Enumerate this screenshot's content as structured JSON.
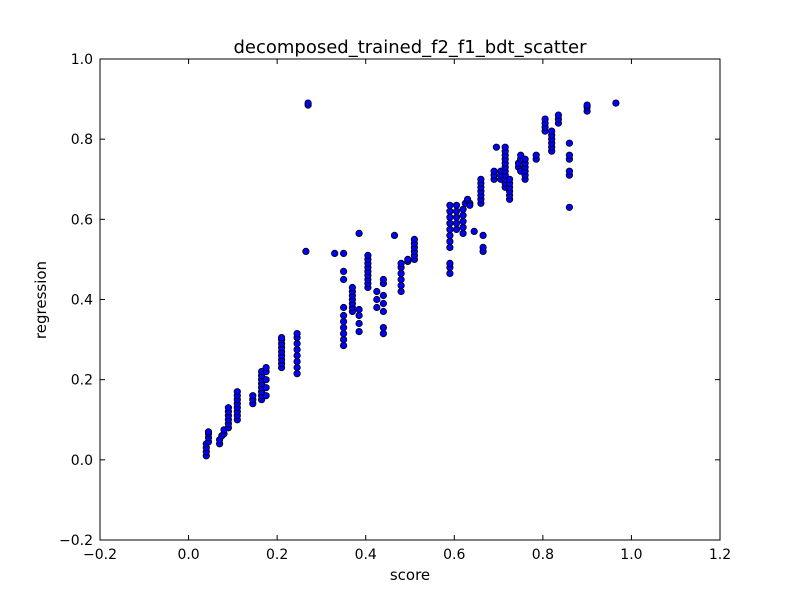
{
  "chart_data": {
    "type": "scatter",
    "title": "decomposed_trained_f2_f1_bdt_scatter",
    "xlabel": "score",
    "ylabel": "regression",
    "xlim": [
      -0.2,
      1.2
    ],
    "ylim": [
      -0.2,
      1.0
    ],
    "xticks": [
      -0.2,
      0.0,
      0.2,
      0.4,
      0.6,
      0.8,
      1.0,
      1.2
    ],
    "yticks": [
      -0.2,
      0.0,
      0.2,
      0.4,
      0.6,
      0.8,
      1.0
    ],
    "xtick_labels": [
      "−0.2",
      "0.0",
      "0.2",
      "0.4",
      "0.6",
      "0.8",
      "1.0",
      "1.2"
    ],
    "ytick_labels": [
      "−0.2",
      "0.0",
      "0.2",
      "0.4",
      "0.6",
      "0.8",
      "1.0"
    ],
    "grid": false,
    "marker_color": "#0000ff",
    "marker_edge_color": "#000000",
    "points": [
      [
        0.04,
        0.01
      ],
      [
        0.04,
        0.02
      ],
      [
        0.04,
        0.03
      ],
      [
        0.04,
        0.04
      ],
      [
        0.045,
        0.045
      ],
      [
        0.045,
        0.055
      ],
      [
        0.045,
        0.065
      ],
      [
        0.045,
        0.07
      ],
      [
        0.07,
        0.04
      ],
      [
        0.07,
        0.05
      ],
      [
        0.075,
        0.06
      ],
      [
        0.08,
        0.065
      ],
      [
        0.08,
        0.075
      ],
      [
        0.09,
        0.08
      ],
      [
        0.09,
        0.09
      ],
      [
        0.09,
        0.1
      ],
      [
        0.09,
        0.11
      ],
      [
        0.09,
        0.12
      ],
      [
        0.09,
        0.13
      ],
      [
        0.11,
        0.1
      ],
      [
        0.11,
        0.11
      ],
      [
        0.11,
        0.12
      ],
      [
        0.11,
        0.13
      ],
      [
        0.11,
        0.14
      ],
      [
        0.11,
        0.15
      ],
      [
        0.11,
        0.16
      ],
      [
        0.11,
        0.17
      ],
      [
        0.145,
        0.14
      ],
      [
        0.145,
        0.15
      ],
      [
        0.145,
        0.16
      ],
      [
        0.165,
        0.15
      ],
      [
        0.165,
        0.16
      ],
      [
        0.165,
        0.17
      ],
      [
        0.165,
        0.18
      ],
      [
        0.165,
        0.19
      ],
      [
        0.165,
        0.2
      ],
      [
        0.165,
        0.21
      ],
      [
        0.165,
        0.22
      ],
      [
        0.175,
        0.16
      ],
      [
        0.175,
        0.18
      ],
      [
        0.175,
        0.2
      ],
      [
        0.175,
        0.22
      ],
      [
        0.175,
        0.23
      ],
      [
        0.21,
        0.23
      ],
      [
        0.21,
        0.24
      ],
      [
        0.21,
        0.25
      ],
      [
        0.21,
        0.26
      ],
      [
        0.21,
        0.27
      ],
      [
        0.21,
        0.28
      ],
      [
        0.21,
        0.29
      ],
      [
        0.21,
        0.3
      ],
      [
        0.21,
        0.305
      ],
      [
        0.245,
        0.215
      ],
      [
        0.245,
        0.23
      ],
      [
        0.245,
        0.245
      ],
      [
        0.245,
        0.26
      ],
      [
        0.245,
        0.275
      ],
      [
        0.245,
        0.29
      ],
      [
        0.245,
        0.305
      ],
      [
        0.245,
        0.315
      ],
      [
        0.265,
        0.52
      ],
      [
        0.27,
        0.885
      ],
      [
        0.27,
        0.89
      ],
      [
        0.33,
        0.515
      ],
      [
        0.35,
        0.285
      ],
      [
        0.35,
        0.3
      ],
      [
        0.35,
        0.315
      ],
      [
        0.35,
        0.33
      ],
      [
        0.35,
        0.345
      ],
      [
        0.35,
        0.36
      ],
      [
        0.35,
        0.38
      ],
      [
        0.35,
        0.45
      ],
      [
        0.35,
        0.47
      ],
      [
        0.35,
        0.515
      ],
      [
        0.37,
        0.37
      ],
      [
        0.37,
        0.38
      ],
      [
        0.37,
        0.39
      ],
      [
        0.37,
        0.4
      ],
      [
        0.37,
        0.41
      ],
      [
        0.37,
        0.42
      ],
      [
        0.37,
        0.43
      ],
      [
        0.385,
        0.32
      ],
      [
        0.385,
        0.34
      ],
      [
        0.385,
        0.36
      ],
      [
        0.385,
        0.375
      ],
      [
        0.385,
        0.565
      ],
      [
        0.405,
        0.43
      ],
      [
        0.405,
        0.44
      ],
      [
        0.405,
        0.45
      ],
      [
        0.405,
        0.46
      ],
      [
        0.405,
        0.47
      ],
      [
        0.405,
        0.48
      ],
      [
        0.405,
        0.49
      ],
      [
        0.405,
        0.5
      ],
      [
        0.405,
        0.51
      ],
      [
        0.425,
        0.38
      ],
      [
        0.425,
        0.4
      ],
      [
        0.425,
        0.42
      ],
      [
        0.44,
        0.315
      ],
      [
        0.44,
        0.33
      ],
      [
        0.44,
        0.37
      ],
      [
        0.44,
        0.39
      ],
      [
        0.44,
        0.41
      ],
      [
        0.44,
        0.44
      ],
      [
        0.44,
        0.45
      ],
      [
        0.465,
        0.56
      ],
      [
        0.48,
        0.42
      ],
      [
        0.48,
        0.435
      ],
      [
        0.48,
        0.45
      ],
      [
        0.48,
        0.465
      ],
      [
        0.48,
        0.48
      ],
      [
        0.48,
        0.49
      ],
      [
        0.495,
        0.495
      ],
      [
        0.495,
        0.5
      ],
      [
        0.51,
        0.5
      ],
      [
        0.51,
        0.51
      ],
      [
        0.51,
        0.52
      ],
      [
        0.51,
        0.53
      ],
      [
        0.51,
        0.54
      ],
      [
        0.51,
        0.55
      ],
      [
        0.59,
        0.465
      ],
      [
        0.59,
        0.48
      ],
      [
        0.59,
        0.49
      ],
      [
        0.59,
        0.53
      ],
      [
        0.59,
        0.545
      ],
      [
        0.59,
        0.56
      ],
      [
        0.59,
        0.575
      ],
      [
        0.59,
        0.59
      ],
      [
        0.59,
        0.605
      ],
      [
        0.59,
        0.62
      ],
      [
        0.59,
        0.635
      ],
      [
        0.605,
        0.575
      ],
      [
        0.605,
        0.59
      ],
      [
        0.605,
        0.605
      ],
      [
        0.605,
        0.62
      ],
      [
        0.605,
        0.635
      ],
      [
        0.62,
        0.565
      ],
      [
        0.62,
        0.58
      ],
      [
        0.62,
        0.595
      ],
      [
        0.62,
        0.61
      ],
      [
        0.62,
        0.625
      ],
      [
        0.625,
        0.64
      ],
      [
        0.63,
        0.65
      ],
      [
        0.635,
        0.64
      ],
      [
        0.635,
        0.635
      ],
      [
        0.645,
        0.57
      ],
      [
        0.66,
        0.64
      ],
      [
        0.66,
        0.65
      ],
      [
        0.66,
        0.66
      ],
      [
        0.66,
        0.67
      ],
      [
        0.66,
        0.68
      ],
      [
        0.66,
        0.69
      ],
      [
        0.66,
        0.7
      ],
      [
        0.665,
        0.52
      ],
      [
        0.665,
        0.53
      ],
      [
        0.665,
        0.56
      ],
      [
        0.69,
        0.7
      ],
      [
        0.69,
        0.71
      ],
      [
        0.69,
        0.72
      ],
      [
        0.695,
        0.78
      ],
      [
        0.705,
        0.7
      ],
      [
        0.705,
        0.71
      ],
      [
        0.705,
        0.72
      ],
      [
        0.715,
        0.68
      ],
      [
        0.715,
        0.69
      ],
      [
        0.715,
        0.7
      ],
      [
        0.715,
        0.71
      ],
      [
        0.715,
        0.72
      ],
      [
        0.715,
        0.73
      ],
      [
        0.715,
        0.74
      ],
      [
        0.715,
        0.75
      ],
      [
        0.715,
        0.76
      ],
      [
        0.715,
        0.77
      ],
      [
        0.715,
        0.78
      ],
      [
        0.725,
        0.65
      ],
      [
        0.725,
        0.66
      ],
      [
        0.725,
        0.67
      ],
      [
        0.725,
        0.68
      ],
      [
        0.725,
        0.69
      ],
      [
        0.725,
        0.7
      ],
      [
        0.745,
        0.73
      ],
      [
        0.745,
        0.74
      ],
      [
        0.75,
        0.75
      ],
      [
        0.75,
        0.76
      ],
      [
        0.75,
        0.72
      ],
      [
        0.76,
        0.7
      ],
      [
        0.76,
        0.71
      ],
      [
        0.76,
        0.72
      ],
      [
        0.76,
        0.73
      ],
      [
        0.76,
        0.74
      ],
      [
        0.76,
        0.75
      ],
      [
        0.785,
        0.75
      ],
      [
        0.785,
        0.76
      ],
      [
        0.805,
        0.82
      ],
      [
        0.805,
        0.83
      ],
      [
        0.805,
        0.84
      ],
      [
        0.805,
        0.85
      ],
      [
        0.82,
        0.77
      ],
      [
        0.82,
        0.78
      ],
      [
        0.82,
        0.79
      ],
      [
        0.82,
        0.8
      ],
      [
        0.82,
        0.81
      ],
      [
        0.82,
        0.82
      ],
      [
        0.835,
        0.84
      ],
      [
        0.835,
        0.85
      ],
      [
        0.835,
        0.86
      ],
      [
        0.86,
        0.63
      ],
      [
        0.86,
        0.71
      ],
      [
        0.86,
        0.72
      ],
      [
        0.86,
        0.75
      ],
      [
        0.86,
        0.76
      ],
      [
        0.86,
        0.79
      ],
      [
        0.9,
        0.87
      ],
      [
        0.9,
        0.88
      ],
      [
        0.9,
        0.885
      ],
      [
        0.965,
        0.89
      ]
    ]
  }
}
